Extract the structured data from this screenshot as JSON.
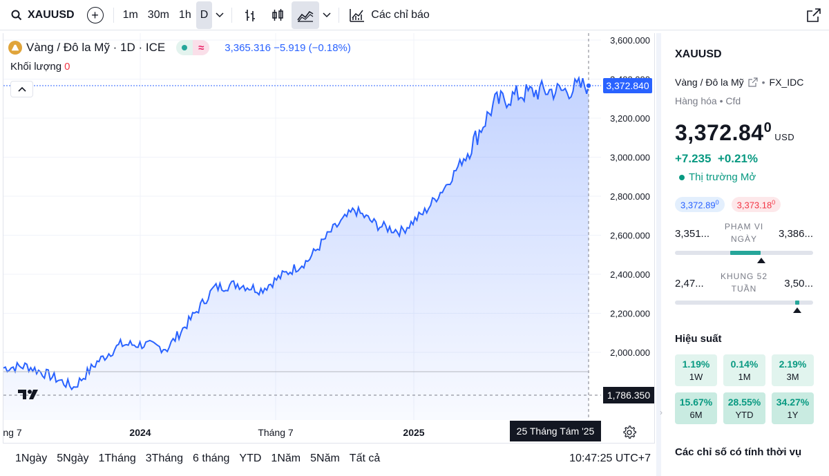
{
  "toolbar": {
    "symbol": "XAUUSD",
    "intervals": [
      "1m",
      "30m",
      "1h",
      "D"
    ],
    "active_interval": "D",
    "indicators_label": "Các chỉ báo"
  },
  "legend": {
    "title": "Vàng / Đô la Mỹ · 1D · ICE",
    "values": "3,365.316 −5.919 (−0.18%)",
    "volume_label": "Khối lượng",
    "volume_value": "0"
  },
  "price_axis": {
    "ticks": [
      "3,600.000",
      "3,400.000",
      "3,200.000",
      "3,000.000",
      "2,800.000",
      "2,600.000",
      "2,400.000",
      "2,200.000",
      "2,000.000"
    ],
    "current_price_tag": "3,372.840",
    "low_tag": "1,786.350"
  },
  "time_axis": {
    "labels": [
      "ng 7",
      "2024",
      "Tháng 7",
      "2025"
    ],
    "crosshair_date": "25 Tháng Tám '25"
  },
  "bottom_bar": {
    "ranges": [
      "1Ngày",
      "5Ngày",
      "1Tháng",
      "3Tháng",
      "6 tháng",
      "YTD",
      "1Năm",
      "5Năm",
      "Tất cả"
    ],
    "clock": "10:47:25 UTC+7"
  },
  "side_panel": {
    "symbol": "XAUUSD",
    "description": "Vàng / Đô la Mỹ",
    "exchange": "FX_IDC",
    "category": "Hàng hóa • Cfd",
    "price_main": "3,372.84",
    "price_sup": "0",
    "currency": "USD",
    "change": "+7.235  +0.21%",
    "market_status": "Thị trường Mở",
    "bid": "3,372.89",
    "bid_sup": "0",
    "ask": "3,373.18",
    "ask_sup": "0",
    "day_range": {
      "low": "3,351...",
      "high": "3,386...",
      "label_1": "PHẠM VI",
      "label_2": "NGÀY"
    },
    "week52_range": {
      "low": "2,47...",
      "high": "3,50...",
      "label_1": "KHUNG 52",
      "label_2": "TUẦN"
    },
    "performance_title": "Hiệu suất",
    "performance": [
      {
        "value": "1.19%",
        "label": "1W"
      },
      {
        "value": "0.14%",
        "label": "1M"
      },
      {
        "value": "2.19%",
        "label": "3M"
      },
      {
        "value": "15.67%",
        "label": "6M"
      },
      {
        "value": "28.55%",
        "label": "YTD"
      },
      {
        "value": "34.27%",
        "label": "1Y"
      }
    ],
    "seasonal_title": "Các chỉ số có tính thời vụ"
  },
  "colors": {
    "line": "#2962ff",
    "up": "#089981",
    "down": "#f23645"
  },
  "chart_data": {
    "type": "area",
    "title": "Vàng / Đô la Mỹ · 1D · ICE",
    "x": [
      "2023-07",
      "2023-08",
      "2023-09",
      "2023-10",
      "2023-11",
      "2023-12",
      "2024-01",
      "2024-02",
      "2024-03",
      "2024-04",
      "2024-05",
      "2024-06",
      "2024-07",
      "2024-08",
      "2024-09",
      "2024-10",
      "2024-11",
      "2024-12",
      "2025-01",
      "2025-02",
      "2025-03",
      "2025-04",
      "2025-05",
      "2025-06",
      "2025-07",
      "2025-08"
    ],
    "values": [
      1920,
      1930,
      1880,
      1820,
      1950,
      2040,
      2040,
      2020,
      2170,
      2330,
      2350,
      2320,
      2400,
      2470,
      2620,
      2730,
      2650,
      2620,
      2720,
      2870,
      3060,
      3280,
      3320,
      3340,
      3340,
      3372.84
    ],
    "ylim": [
      1786.35,
      3620
    ],
    "ylabel": "",
    "xlabel": "",
    "grid": true
  }
}
